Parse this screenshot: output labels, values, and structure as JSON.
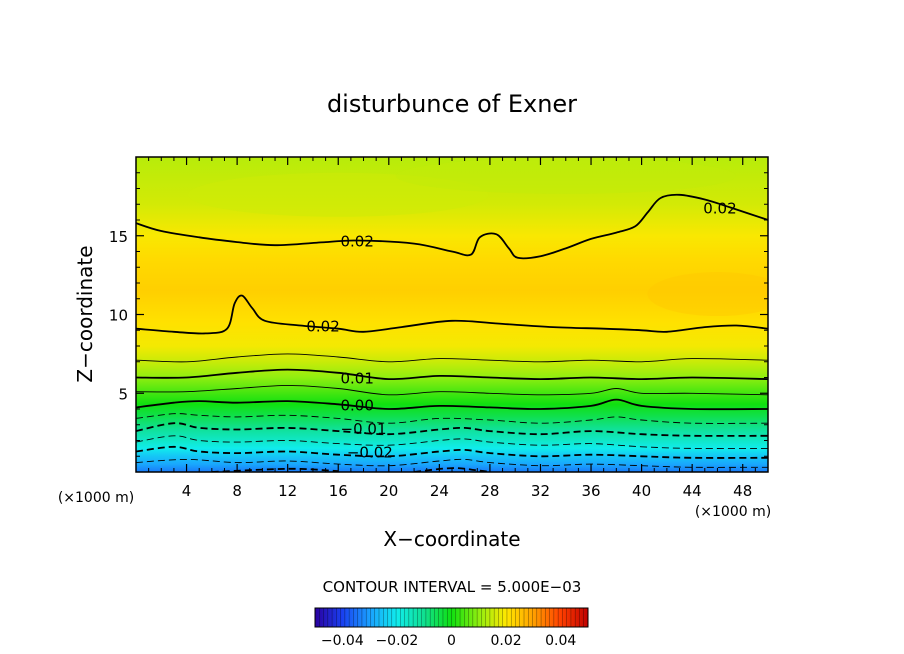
{
  "chart_data": {
    "type": "heatmap",
    "title": "disturbunce of Exner",
    "xlabel": "X−coordinate",
    "ylabel": "Z−coordinate",
    "x_unit_label": "(×1000 m)",
    "z_unit_label": "(×1000 m)",
    "xlim": [
      0,
      50
    ],
    "ylim": [
      0,
      20
    ],
    "x_ticks": [
      4,
      8,
      12,
      16,
      20,
      24,
      28,
      32,
      36,
      40,
      44,
      48
    ],
    "x_tick_labels": [
      "4",
      "8",
      "12",
      "16",
      "20",
      "24",
      "28",
      "32",
      "36",
      "40",
      "44",
      "48"
    ],
    "y_ticks": [
      5,
      10,
      15
    ],
    "y_tick_labels": [
      "5",
      "10",
      "15"
    ],
    "contour_interval_text": "CONTOUR INTERVAL = 5.000E−03",
    "contour_labels": [
      {
        "text": "0.02",
        "x": 17.5,
        "z": 14.7
      },
      {
        "text": "0.02",
        "x": 46.2,
        "z": 16.8
      },
      {
        "text": "0.02",
        "x": 14.8,
        "z": 9.3
      },
      {
        "text": "0.01",
        "x": 17.5,
        "z": 6.0
      },
      {
        "text": "0.00",
        "x": 17.5,
        "z": 4.3
      },
      {
        "text": "−0.01",
        "x": 18.0,
        "z": 2.8
      },
      {
        "text": "−0.02",
        "x": 18.5,
        "z": 1.3
      }
    ],
    "colorbar": {
      "range": [
        -0.05,
        0.05
      ],
      "ticks": [
        -0.04,
        -0.02,
        0,
        0.02,
        0.04
      ],
      "tick_labels": [
        "−0.04",
        "−0.02",
        "0",
        "0.02",
        "0.04"
      ]
    },
    "value_scale": [
      {
        "v": -0.05,
        "color": "#2a00a0"
      },
      {
        "v": -0.04,
        "color": "#1a40f0"
      },
      {
        "v": -0.03,
        "color": "#1aa0ff"
      },
      {
        "v": -0.02,
        "color": "#10ecec"
      },
      {
        "v": -0.01,
        "color": "#10e090"
      },
      {
        "v": 0.0,
        "color": "#10e010"
      },
      {
        "v": 0.01,
        "color": "#90ee10"
      },
      {
        "v": 0.02,
        "color": "#ffe800"
      },
      {
        "v": 0.03,
        "color": "#ffa000"
      },
      {
        "v": 0.04,
        "color": "#ff4000"
      },
      {
        "v": 0.05,
        "color": "#c00000"
      }
    ],
    "vertical_profile": [
      {
        "z": 0.0,
        "v": -0.034
      },
      {
        "z": 0.5,
        "v": -0.029
      },
      {
        "z": 1.0,
        "v": -0.025
      },
      {
        "z": 1.5,
        "v": -0.02
      },
      {
        "z": 2.0,
        "v": -0.016
      },
      {
        "z": 2.7,
        "v": -0.011
      },
      {
        "z": 3.5,
        "v": -0.005
      },
      {
        "z": 4.3,
        "v": 0.0
      },
      {
        "z": 5.0,
        "v": 0.004
      },
      {
        "z": 6.0,
        "v": 0.01
      },
      {
        "z": 7.0,
        "v": 0.015
      },
      {
        "z": 8.0,
        "v": 0.019
      },
      {
        "z": 9.5,
        "v": 0.021
      },
      {
        "z": 11.5,
        "v": 0.0235
      },
      {
        "z": 13.5,
        "v": 0.022
      },
      {
        "z": 15.0,
        "v": 0.0195
      },
      {
        "z": 17.0,
        "v": 0.016
      },
      {
        "z": 20.0,
        "v": 0.0135
      }
    ],
    "contours": [
      {
        "level": 0.02,
        "dashed": false,
        "points": [
          [
            0,
            15.8
          ],
          [
            2,
            15.3
          ],
          [
            5,
            14.9
          ],
          [
            8,
            14.6
          ],
          [
            11,
            14.4
          ],
          [
            15,
            14.6
          ],
          [
            17.5,
            14.7
          ],
          [
            22,
            14.5
          ],
          [
            25,
            14.0
          ],
          [
            26.5,
            13.8
          ],
          [
            27.2,
            14.9
          ],
          [
            28.5,
            15.1
          ],
          [
            29.5,
            14.2
          ],
          [
            30.2,
            13.6
          ],
          [
            32,
            13.7
          ],
          [
            34,
            14.2
          ],
          [
            36,
            14.8
          ],
          [
            38,
            15.2
          ],
          [
            39.5,
            15.6
          ],
          [
            40.5,
            16.5
          ],
          [
            41.5,
            17.4
          ],
          [
            43,
            17.6
          ],
          [
            45,
            17.3
          ],
          [
            47,
            16.8
          ],
          [
            50,
            16.0
          ]
        ]
      },
      {
        "level": 0.02,
        "dashed": false,
        "points": [
          [
            0,
            9.1
          ],
          [
            3,
            8.9
          ],
          [
            5.5,
            8.8
          ],
          [
            7.2,
            9.1
          ],
          [
            7.8,
            10.7
          ],
          [
            8.4,
            11.2
          ],
          [
            9.2,
            10.4
          ],
          [
            10.2,
            9.6
          ],
          [
            13,
            9.3
          ],
          [
            16,
            9.1
          ],
          [
            18,
            8.9
          ],
          [
            21,
            9.2
          ],
          [
            25,
            9.6
          ],
          [
            29,
            9.4
          ],
          [
            33,
            9.2
          ],
          [
            37,
            9.1
          ],
          [
            40,
            9.0
          ],
          [
            42,
            8.9
          ],
          [
            45,
            9.2
          ],
          [
            47.5,
            9.3
          ],
          [
            50,
            9.1
          ]
        ]
      },
      {
        "level": 0.015,
        "dashed": false,
        "points": [
          [
            0,
            7.1
          ],
          [
            4,
            7.0
          ],
          [
            8,
            7.3
          ],
          [
            12,
            7.5
          ],
          [
            16,
            7.3
          ],
          [
            20,
            7.0
          ],
          [
            24,
            7.2
          ],
          [
            28,
            7.1
          ],
          [
            32,
            7.0
          ],
          [
            36,
            7.1
          ],
          [
            40,
            7.0
          ],
          [
            44,
            7.2
          ],
          [
            50,
            7.1
          ]
        ]
      },
      {
        "level": 0.01,
        "dashed": false,
        "points": [
          [
            0,
            6.0
          ],
          [
            4,
            6.0
          ],
          [
            8,
            6.3
          ],
          [
            12,
            6.5
          ],
          [
            16,
            6.3
          ],
          [
            20,
            5.9
          ],
          [
            24,
            6.1
          ],
          [
            28,
            6.0
          ],
          [
            32,
            5.9
          ],
          [
            36,
            6.0
          ],
          [
            40,
            5.9
          ],
          [
            44,
            6.0
          ],
          [
            50,
            5.9
          ]
        ]
      },
      {
        "level": 0.005,
        "dashed": false,
        "points": [
          [
            0,
            5.1
          ],
          [
            4,
            5.1
          ],
          [
            8,
            5.3
          ],
          [
            12,
            5.5
          ],
          [
            16,
            5.3
          ],
          [
            20,
            4.9
          ],
          [
            24,
            5.1
          ],
          [
            28,
            5.0
          ],
          [
            32,
            4.9
          ],
          [
            36,
            5.0
          ],
          [
            38,
            5.3
          ],
          [
            40,
            5.0
          ],
          [
            44,
            5.0
          ],
          [
            50,
            4.9
          ]
        ]
      },
      {
        "level": 0.0,
        "dashed": false,
        "points": [
          [
            0,
            4.1
          ],
          [
            3,
            4.4
          ],
          [
            5,
            4.5
          ],
          [
            8,
            4.4
          ],
          [
            12,
            4.5
          ],
          [
            16,
            4.3
          ],
          [
            20,
            4.0
          ],
          [
            24,
            4.2
          ],
          [
            28,
            4.1
          ],
          [
            32,
            4.0
          ],
          [
            36,
            4.2
          ],
          [
            38,
            4.6
          ],
          [
            40,
            4.2
          ],
          [
            44,
            4.0
          ],
          [
            50,
            4.0
          ]
        ]
      },
      {
        "level": -0.005,
        "dashed": true,
        "points": [
          [
            0,
            3.4
          ],
          [
            3,
            3.7
          ],
          [
            5,
            3.6
          ],
          [
            8,
            3.5
          ],
          [
            12,
            3.6
          ],
          [
            16,
            3.4
          ],
          [
            20,
            3.1
          ],
          [
            24,
            3.4
          ],
          [
            28,
            3.3
          ],
          [
            32,
            3.1
          ],
          [
            36,
            3.3
          ],
          [
            38,
            3.5
          ],
          [
            40,
            3.3
          ],
          [
            44,
            3.1
          ],
          [
            50,
            3.1
          ]
        ]
      },
      {
        "level": -0.01,
        "dashed": true,
        "points": [
          [
            0,
            2.6
          ],
          [
            3,
            3.1
          ],
          [
            5,
            2.8
          ],
          [
            8,
            2.7
          ],
          [
            12,
            2.8
          ],
          [
            16,
            2.6
          ],
          [
            20,
            2.4
          ],
          [
            24,
            2.7
          ],
          [
            26,
            2.8
          ],
          [
            28,
            2.6
          ],
          [
            32,
            2.4
          ],
          [
            36,
            2.6
          ],
          [
            40,
            2.4
          ],
          [
            44,
            2.3
          ],
          [
            50,
            2.3
          ]
        ]
      },
      {
        "level": -0.015,
        "dashed": true,
        "points": [
          [
            0,
            1.9
          ],
          [
            3,
            2.3
          ],
          [
            5,
            2.0
          ],
          [
            8,
            1.9
          ],
          [
            12,
            2.0
          ],
          [
            16,
            1.8
          ],
          [
            20,
            1.7
          ],
          [
            24,
            2.0
          ],
          [
            26,
            2.1
          ],
          [
            28,
            1.9
          ],
          [
            32,
            1.7
          ],
          [
            36,
            1.8
          ],
          [
            40,
            1.6
          ],
          [
            44,
            1.5
          ],
          [
            50,
            1.5
          ]
        ]
      },
      {
        "level": -0.02,
        "dashed": true,
        "points": [
          [
            0,
            1.3
          ],
          [
            3,
            1.6
          ],
          [
            5,
            1.3
          ],
          [
            8,
            1.2
          ],
          [
            12,
            1.3
          ],
          [
            16,
            1.1
          ],
          [
            20,
            1.0
          ],
          [
            24,
            1.3
          ],
          [
            26,
            1.4
          ],
          [
            28,
            1.2
          ],
          [
            32,
            1.0
          ],
          [
            36,
            1.1
          ],
          [
            40,
            1.0
          ],
          [
            44,
            0.9
          ],
          [
            50,
            0.9
          ]
        ]
      },
      {
        "level": -0.025,
        "dashed": true,
        "points": [
          [
            0,
            0.6
          ],
          [
            4,
            0.8
          ],
          [
            8,
            0.6
          ],
          [
            12,
            0.7
          ],
          [
            16,
            0.5
          ],
          [
            20,
            0.4
          ],
          [
            24,
            0.7
          ],
          [
            26,
            0.8
          ],
          [
            28,
            0.6
          ],
          [
            32,
            0.4
          ],
          [
            36,
            0.5
          ],
          [
            40,
            0.4
          ],
          [
            44,
            0.3
          ],
          [
            50,
            0.3
          ]
        ]
      },
      {
        "level": -0.03,
        "dashed": true,
        "points": [
          [
            6,
            0.0
          ],
          [
            10,
            0.15
          ],
          [
            13,
            0.2
          ],
          [
            16,
            0.05
          ]
        ]
      },
      {
        "level": -0.03,
        "dashed": true,
        "points": [
          [
            22,
            0.0
          ],
          [
            25,
            0.25
          ],
          [
            27,
            0.1
          ],
          [
            28,
            0.0
          ]
        ]
      }
    ]
  }
}
